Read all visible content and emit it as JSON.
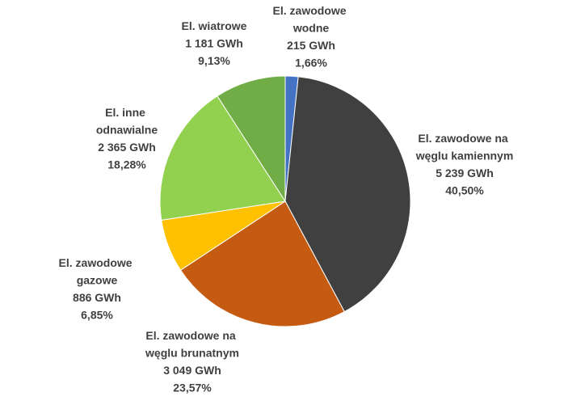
{
  "chart_data": {
    "type": "pie",
    "categories": [
      "El. zawodowe wodne",
      "El. zawodowe na węglu kamiennym",
      "El. zawodowe na węglu brunatnym",
      "El. zawodowe gazowe",
      "El. inne odnawialne",
      "El. wiatrowe"
    ],
    "values": [
      215,
      5239,
      3049,
      886,
      2365,
      1181
    ],
    "value_labels": [
      "215 GWh",
      "5 239 GWh",
      "3 049 GWh",
      "886 GWh",
      "2 365 GWh",
      "1 181 GWh"
    ],
    "percents": [
      1.66,
      40.5,
      23.57,
      6.85,
      18.28,
      9.13
    ],
    "percent_labels": [
      "1,66%",
      "40,50%",
      "23,57%",
      "6,85%",
      "18,28%",
      "9,13%"
    ],
    "colors": [
      "#4472c4",
      "#404040",
      "#c55a11",
      "#ffc000",
      "#92d050",
      "#70ad47"
    ]
  }
}
